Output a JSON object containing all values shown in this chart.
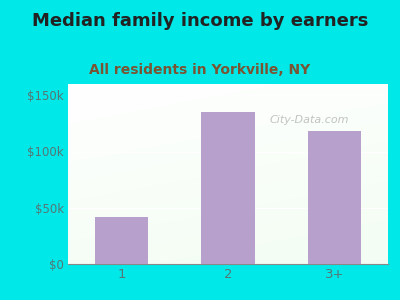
{
  "title": "Median family income by earners",
  "subtitle": "All residents in Yorkville, NY",
  "categories": [
    "1",
    "2",
    "3+"
  ],
  "values": [
    42000,
    135000,
    118000
  ],
  "bar_color": "#b8a0cc",
  "background_color": "#00e8e8",
  "ylim": [
    0,
    160000
  ],
  "yticks": [
    0,
    50000,
    100000,
    150000
  ],
  "ytick_labels": [
    "$0",
    "$50k",
    "$100k",
    "$150k"
  ],
  "title_fontsize": 13,
  "subtitle_fontsize": 10,
  "title_color": "#222222",
  "subtitle_color": "#7a5533",
  "tick_color": "#557777",
  "watermark": "City-Data.com",
  "watermark_color": "#aaaaaa",
  "bar_width": 0.5
}
